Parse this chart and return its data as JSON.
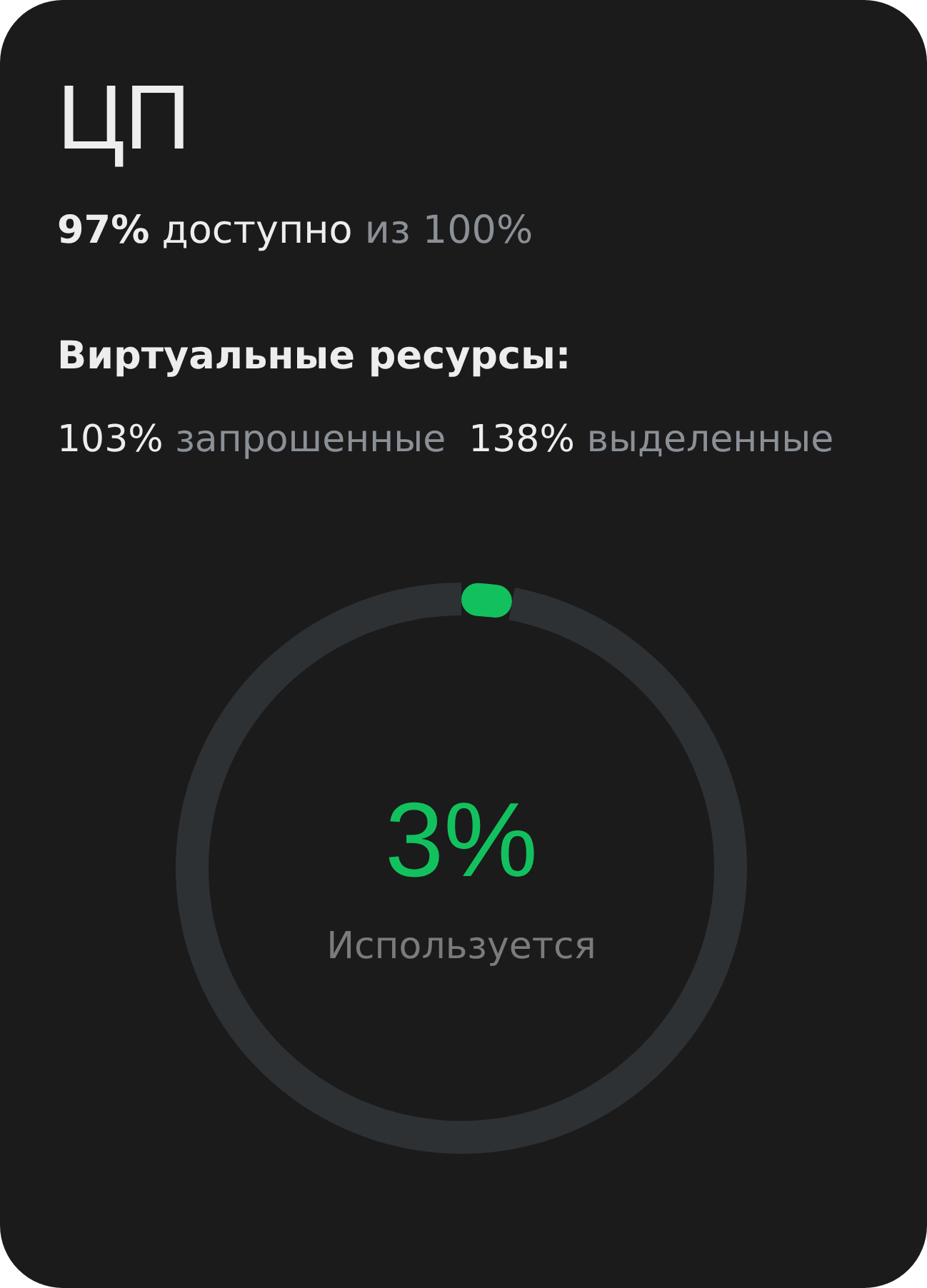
{
  "chart_data": {
    "type": "donut",
    "title": "ЦП",
    "subtitle": "97% доступно из 100%",
    "annotations": [
      "Виртуальные ресурсы:",
      "103% запрошенные",
      "138% выделенные"
    ],
    "categories": [
      "Используется",
      null
    ],
    "values": [
      3,
      97
    ],
    "colors": [
      "#12c15e",
      "#2e3134"
    ],
    "value_labels": [
      "3%",
      null
    ]
  }
}
